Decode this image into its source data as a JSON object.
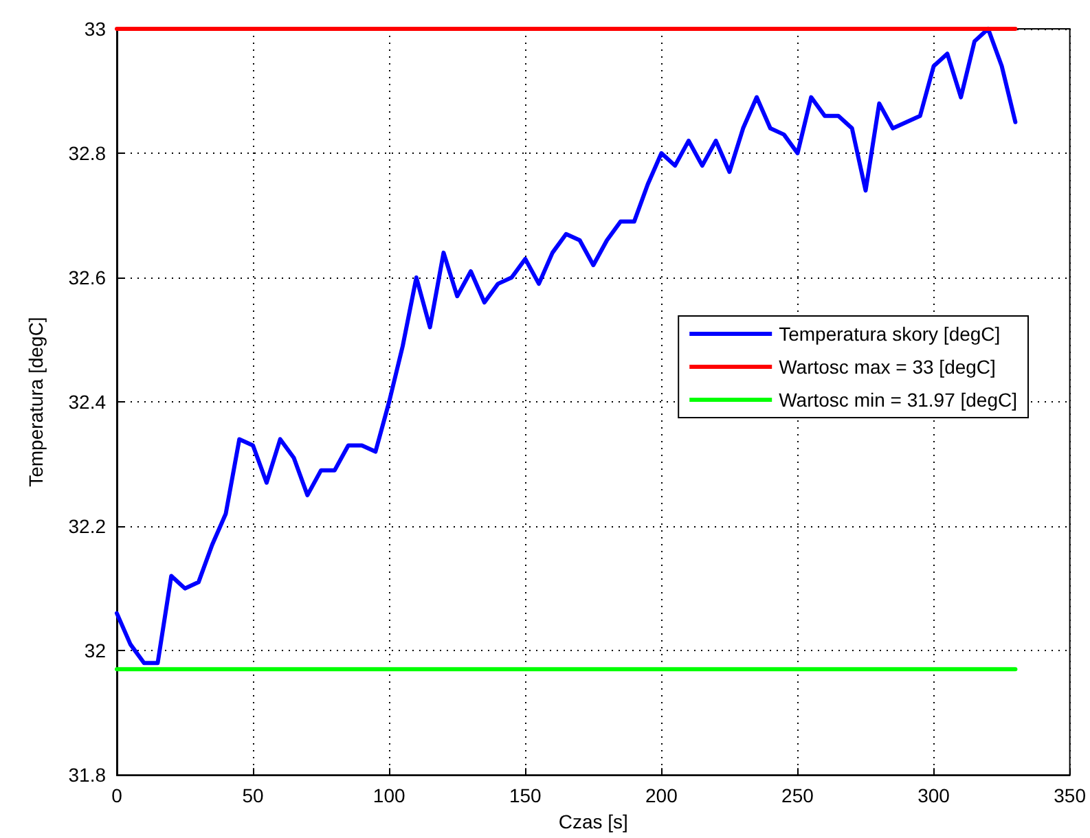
{
  "chart_data": {
    "type": "line",
    "xlabel": "Czas [s]",
    "ylabel": "Temperatura [degC]",
    "x": [
      0,
      5,
      10,
      15,
      20,
      25,
      30,
      35,
      40,
      45,
      50,
      55,
      60,
      65,
      70,
      75,
      80,
      85,
      90,
      95,
      100,
      105,
      110,
      115,
      120,
      125,
      130,
      135,
      140,
      145,
      150,
      155,
      160,
      165,
      170,
      175,
      180,
      185,
      190,
      195,
      200,
      205,
      210,
      215,
      220,
      225,
      230,
      235,
      240,
      245,
      250,
      255,
      260,
      265,
      270,
      275,
      280,
      285,
      290,
      295,
      300,
      305,
      310,
      315,
      320,
      325,
      330
    ],
    "series": [
      {
        "name": "Temperatura skory [degC]",
        "color": "#0000ff",
        "values": [
          32.06,
          32.01,
          31.98,
          31.98,
          32.12,
          32.1,
          32.11,
          32.17,
          32.22,
          32.34,
          32.33,
          32.27,
          32.34,
          32.31,
          32.25,
          32.29,
          32.29,
          32.33,
          32.33,
          32.32,
          32.4,
          32.49,
          32.6,
          32.52,
          32.64,
          32.57,
          32.61,
          32.56,
          32.59,
          32.6,
          32.63,
          32.59,
          32.64,
          32.67,
          32.66,
          32.62,
          32.66,
          32.69,
          32.69,
          32.75,
          32.8,
          32.78,
          32.82,
          32.78,
          32.82,
          32.77,
          32.84,
          32.89,
          32.84,
          32.83,
          32.8,
          32.89,
          32.86,
          32.86,
          32.84,
          32.74,
          32.88,
          32.84,
          32.85,
          32.86,
          32.94,
          32.96,
          32.89,
          32.98,
          33.0,
          32.94,
          32.85
        ]
      },
      {
        "name": "Wartosc max = 33 [degC]",
        "color": "#ff0000",
        "values": [
          33,
          33,
          33,
          33,
          33,
          33,
          33,
          33,
          33,
          33,
          33,
          33,
          33,
          33,
          33,
          33,
          33,
          33,
          33,
          33,
          33,
          33,
          33,
          33,
          33,
          33,
          33,
          33,
          33,
          33,
          33,
          33,
          33,
          33,
          33,
          33,
          33,
          33,
          33,
          33,
          33,
          33,
          33,
          33,
          33,
          33,
          33,
          33,
          33,
          33,
          33,
          33,
          33,
          33,
          33,
          33,
          33,
          33,
          33,
          33,
          33,
          33,
          33,
          33,
          33,
          33,
          33
        ]
      },
      {
        "name": "Wartosc min = 31.97 [degC]",
        "color": "#00ff00",
        "values": [
          31.97,
          31.97,
          31.97,
          31.97,
          31.97,
          31.97,
          31.97,
          31.97,
          31.97,
          31.97,
          31.97,
          31.97,
          31.97,
          31.97,
          31.97,
          31.97,
          31.97,
          31.97,
          31.97,
          31.97,
          31.97,
          31.97,
          31.97,
          31.97,
          31.97,
          31.97,
          31.97,
          31.97,
          31.97,
          31.97,
          31.97,
          31.97,
          31.97,
          31.97,
          31.97,
          31.97,
          31.97,
          31.97,
          31.97,
          31.97,
          31.97,
          31.97,
          31.97,
          31.97,
          31.97,
          31.97,
          31.97,
          31.97,
          31.97,
          31.97,
          31.97,
          31.97,
          31.97,
          31.97,
          31.97,
          31.97,
          31.97,
          31.97,
          31.97,
          31.97,
          31.97,
          31.97,
          31.97,
          31.97,
          31.97,
          31.97,
          31.97
        ]
      }
    ],
    "xlim": [
      0,
      350
    ],
    "xticks": [
      0,
      50,
      100,
      150,
      200,
      250,
      300,
      350
    ],
    "ylim": [
      31.8,
      33
    ],
    "yticks": [
      31.8,
      32,
      32.2,
      32.4,
      32.6,
      32.8,
      33
    ],
    "grid": true,
    "legend": "right",
    "marker": "none",
    "line_style": "solid"
  }
}
